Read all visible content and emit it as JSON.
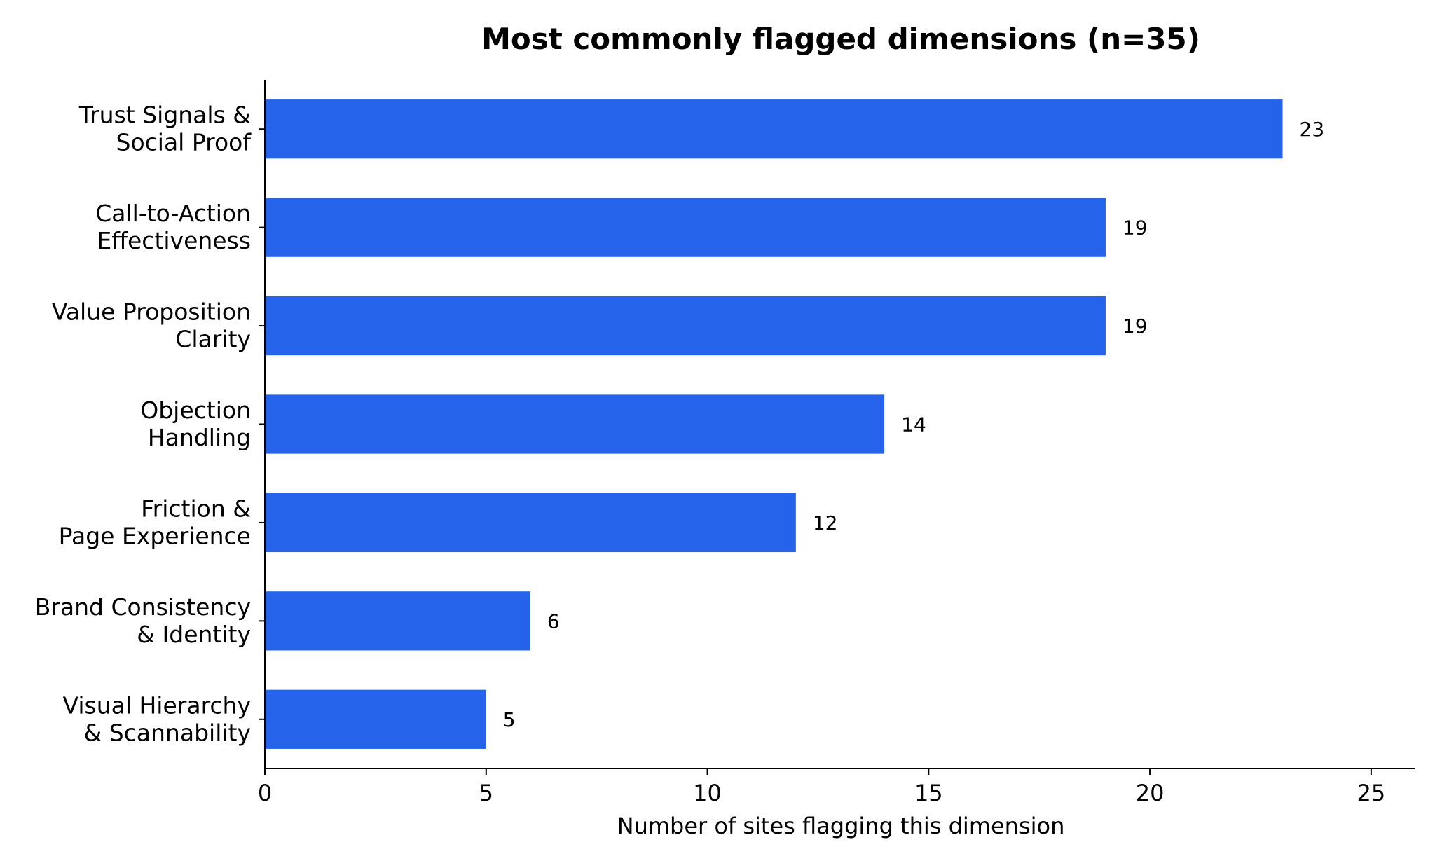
{
  "chart_data": {
    "type": "bar",
    "orientation": "horizontal",
    "title": "Most commonly flagged dimensions (n=35)",
    "xlabel": "Number of sites flagging this dimension",
    "ylabel": "",
    "xlim": [
      0,
      26
    ],
    "xticks": [
      0,
      5,
      10,
      15,
      20,
      25
    ],
    "grid": false,
    "legend": "none",
    "bar_color": "#2563EB",
    "categories": [
      [
        "Trust Signals &",
        "Social Proof"
      ],
      [
        "Call-to-Action",
        "Effectiveness"
      ],
      [
        "Value Proposition",
        "Clarity"
      ],
      [
        "Objection",
        "Handling"
      ],
      [
        "Friction &",
        "Page Experience"
      ],
      [
        "Brand Consistency",
        "& Identity"
      ],
      [
        "Visual Hierarchy",
        "& Scannability"
      ]
    ],
    "values": [
      23,
      19,
      19,
      14,
      12,
      6,
      5
    ]
  }
}
